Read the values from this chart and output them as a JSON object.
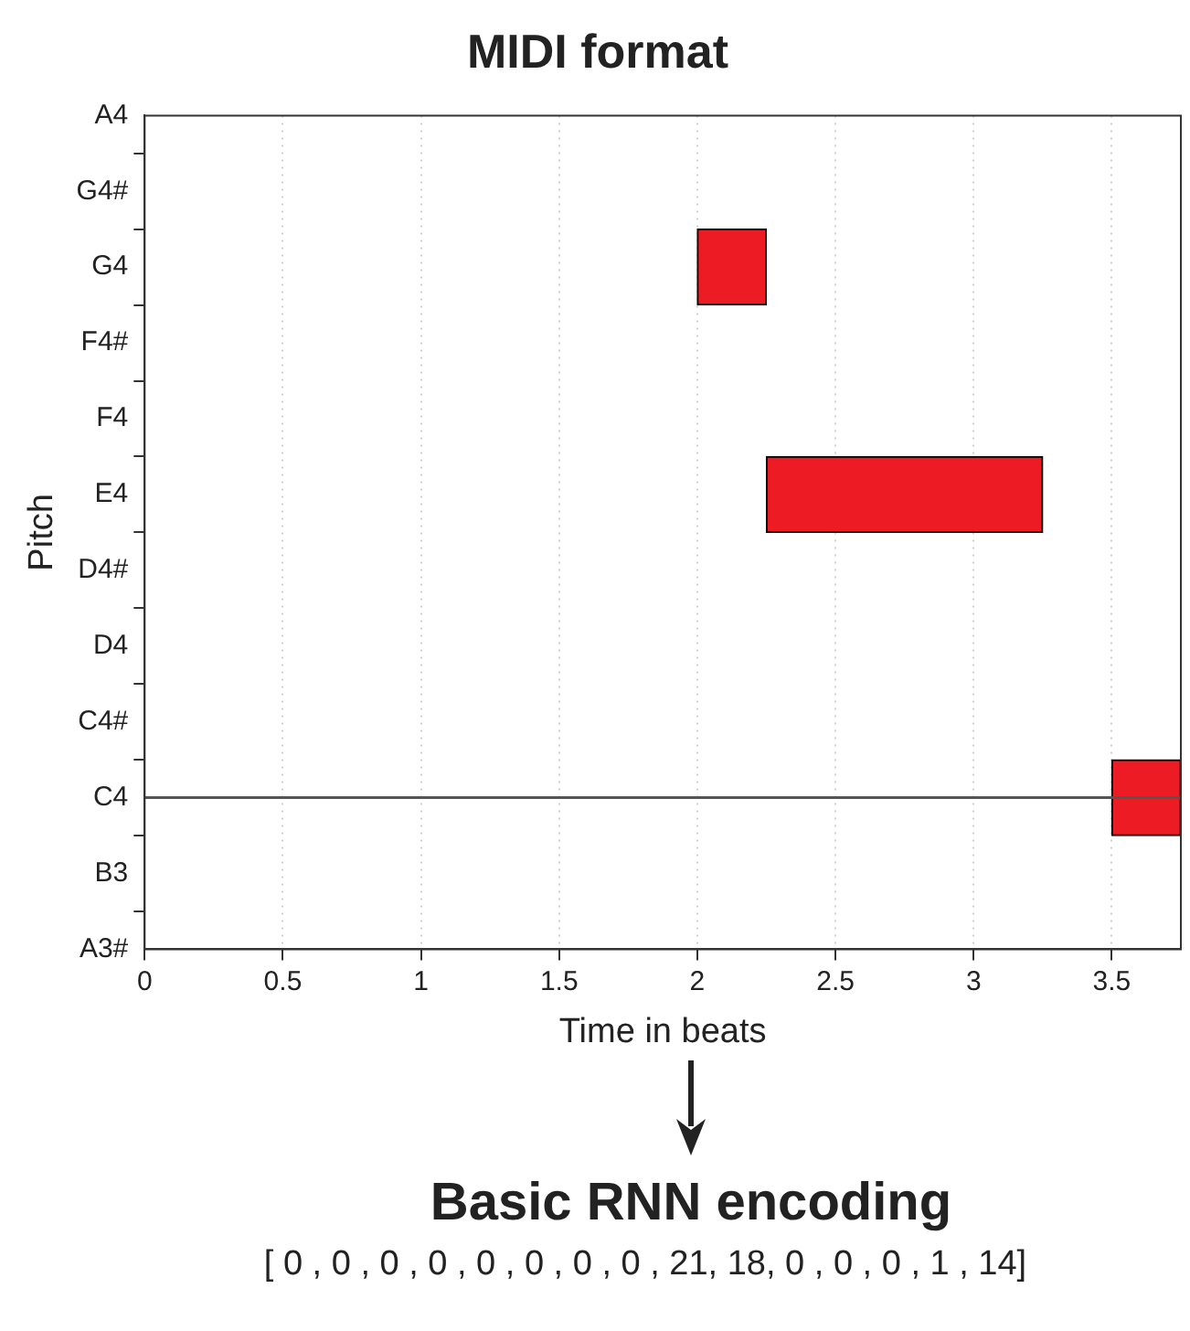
{
  "chart_data": {
    "type": "bar",
    "orientation": "horizontal",
    "title": "MIDI format",
    "xlabel": "Time in beats",
    "ylabel": "Pitch",
    "categories": [
      "A4",
      "G4#",
      "G4",
      "F4#",
      "F4",
      "E4",
      "D4#",
      "D4",
      "C4#",
      "C4",
      "B3",
      "A3#"
    ],
    "values": [
      null,
      null,
      0.25,
      null,
      null,
      1,
      null,
      null,
      null,
      0.25,
      null,
      null
    ],
    "base": [
      null,
      null,
      2,
      null,
      null,
      2.25,
      null,
      null,
      null,
      3.5,
      null,
      null
    ],
    "color": "#ed1c24",
    "xlim": [
      0,
      3.75
    ],
    "xticks": [
      0,
      0.5,
      1,
      1.5,
      2,
      2.5,
      3,
      3.5
    ],
    "grid": "x",
    "legend": false,
    "ref_lines": [
      {
        "axis": "y",
        "value": "C4",
        "color": "#555555"
      }
    ],
    "annotations": [
      "Basic RNN encoding",
      "[ 0 , 0 , 0 , 0 , 0 , 0 , 0 , 0 , 21, 18, 0 , 0 , 0 , 1 , 14]"
    ]
  }
}
